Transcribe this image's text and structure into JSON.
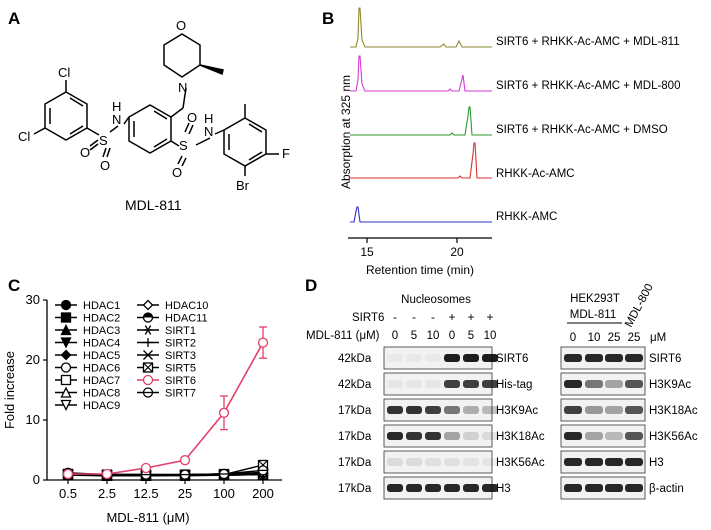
{
  "panels": {
    "A": {
      "letter": "A",
      "compound_name": "MDL-811",
      "atoms": {
        "cl1": "Cl",
        "cl2": "Cl",
        "o_morph": "O",
        "n_morph": "N",
        "s1": "S",
        "s2": "S",
        "o1": "O",
        "o2": "O",
        "o3": "O",
        "o4": "O",
        "nh1": "N",
        "h1": "H",
        "nh2": "N",
        "h2": "H",
        "f": "F",
        "br": "Br"
      }
    },
    "B": {
      "letter": "B",
      "ylabel": "Absorption at 325 nm",
      "xlabel": "Retention time (min)",
      "ticks": [
        "15",
        "20"
      ],
      "traces": [
        {
          "label": "SIRT6 + RHKK-Ac-AMC + MDL-811",
          "color": "#8b8a2e"
        },
        {
          "label": "SIRT6 + RHKK-Ac-AMC + MDL-800",
          "color": "#d63ad6"
        },
        {
          "label": "SIRT6 + RHKK-Ac-AMC + DMSO",
          "color": "#2a9a2a"
        },
        {
          "label": "RHKK-Ac-AMC",
          "color": "#d83030"
        },
        {
          "label": "RHKK-AMC",
          "color": "#3030c8"
        }
      ]
    },
    "C": {
      "letter": "C"
    },
    "D": {
      "letter": "D",
      "left": {
        "title": "Nucleosomes",
        "row1_label": "SIRT6",
        "row1_signs": [
          "-",
          "-",
          "-",
          "+",
          "+",
          "+"
        ],
        "row2_label": "MDL-811 (μM)",
        "row2_values": [
          "0",
          "5",
          "10",
          "0",
          "5",
          "10"
        ],
        "blots": [
          {
            "mw": "42kDa",
            "name": "SIRT6",
            "intensity": [
              0.03,
              0.03,
              0.03,
              0.95,
              0.95,
              0.95
            ]
          },
          {
            "mw": "42kDa",
            "name": "His-tag",
            "intensity": [
              0.05,
              0.05,
              0.05,
              0.8,
              0.8,
              0.8
            ]
          },
          {
            "mw": "17kDa",
            "name": "H3K9Ac",
            "intensity": [
              0.85,
              0.85,
              0.8,
              0.55,
              0.3,
              0.25
            ]
          },
          {
            "mw": "17kDa",
            "name": "H3K18Ac",
            "intensity": [
              0.9,
              0.85,
              0.85,
              0.35,
              0.15,
              0.1
            ]
          },
          {
            "mw": "17kDa",
            "name": "H3K56Ac",
            "intensity": [
              0.1,
              0.1,
              0.08,
              0.08,
              0.06,
              0.06
            ]
          },
          {
            "mw": "17kDa",
            "name": "H3",
            "intensity": [
              0.9,
              0.9,
              0.9,
              0.9,
              0.9,
              0.9
            ]
          }
        ]
      },
      "right": {
        "cell_line": "HEK293T",
        "group1": "MDL-811",
        "group2": "MDL-800",
        "lanes": [
          "0",
          "10",
          "25",
          "25"
        ],
        "unit": "μM",
        "blots": [
          {
            "name": "SIRT6",
            "intensity": [
              0.9,
              0.9,
              0.9,
              0.9
            ]
          },
          {
            "name": "H3K9Ac",
            "intensity": [
              0.9,
              0.55,
              0.35,
              0.7
            ]
          },
          {
            "name": "H3K18Ac",
            "intensity": [
              0.8,
              0.4,
              0.35,
              0.7
            ]
          },
          {
            "name": "H3K56Ac",
            "intensity": [
              0.9,
              0.35,
              0.25,
              0.7
            ]
          },
          {
            "name": "H3",
            "intensity": [
              0.9,
              0.9,
              0.9,
              0.9
            ]
          },
          {
            "name": "β-actin",
            "intensity": [
              0.9,
              0.9,
              0.9,
              0.9
            ]
          }
        ]
      }
    }
  },
  "chart_data": {
    "type": "line",
    "title": "",
    "xlabel": "MDL-811 (μM)",
    "ylabel": "Fold increase",
    "categories": [
      "0.5",
      "2.5",
      "12.5",
      "25",
      "100",
      "200"
    ],
    "ylim": [
      0,
      30
    ],
    "yticks": [
      "0",
      "10",
      "20",
      "30"
    ],
    "legend_position": "top-left",
    "grid": false,
    "series": [
      {
        "name": "HDAC1",
        "marker": "circle-filled",
        "color": "#000000",
        "values": [
          1.2,
          0.9,
          0.9,
          0.8,
          0.9,
          1.0
        ],
        "errors": [
          0.2,
          0.2,
          0.2,
          0.2,
          0.2,
          0.2
        ]
      },
      {
        "name": "HDAC2",
        "marker": "square-filled",
        "color": "#000000",
        "values": [
          1.0,
          0.8,
          0.8,
          0.9,
          1.0,
          1.1
        ],
        "errors": [
          0.2,
          0.2,
          0.2,
          0.2,
          0.2,
          0.2
        ]
      },
      {
        "name": "HDAC3",
        "marker": "triangle-filled",
        "color": "#000000",
        "values": [
          0.9,
          0.7,
          0.8,
          0.8,
          0.9,
          0.9
        ],
        "errors": [
          0.2,
          0.2,
          0.2,
          0.2,
          0.2,
          0.2
        ]
      },
      {
        "name": "HDAC4",
        "marker": "triangle-down-filled",
        "color": "#000000",
        "values": [
          0.8,
          0.7,
          0.7,
          0.8,
          0.8,
          0.9
        ],
        "errors": [
          0.2,
          0.2,
          0.2,
          0.2,
          0.2,
          0.2
        ]
      },
      {
        "name": "HDAC5",
        "marker": "diamond-filled",
        "color": "#000000",
        "values": [
          1.1,
          0.9,
          0.8,
          0.9,
          0.9,
          1.0
        ],
        "errors": [
          0.2,
          0.2,
          0.2,
          0.2,
          0.2,
          0.2
        ]
      },
      {
        "name": "HDAC6",
        "marker": "circle-open",
        "color": "#000000",
        "values": [
          1.0,
          0.9,
          0.9,
          0.9,
          1.0,
          1.2
        ],
        "errors": [
          0.2,
          0.2,
          0.2,
          0.2,
          0.2,
          0.2
        ]
      },
      {
        "name": "HDAC7",
        "marker": "square-open",
        "color": "#000000",
        "values": [
          0.9,
          0.8,
          0.8,
          0.7,
          0.8,
          1.0
        ],
        "errors": [
          0.2,
          0.2,
          0.2,
          0.2,
          0.2,
          0.2
        ]
      },
      {
        "name": "HDAC8",
        "marker": "triangle-open",
        "color": "#000000",
        "values": [
          0.8,
          0.8,
          0.7,
          0.8,
          0.9,
          0.9
        ],
        "errors": [
          0.2,
          0.2,
          0.2,
          0.2,
          0.2,
          0.2
        ]
      },
      {
        "name": "HDAC9",
        "marker": "triangle-down-open",
        "color": "#000000",
        "values": [
          0.9,
          0.8,
          0.8,
          0.8,
          0.8,
          0.9
        ],
        "errors": [
          0.2,
          0.2,
          0.2,
          0.2,
          0.2,
          0.2
        ]
      },
      {
        "name": "HDAC10",
        "marker": "diamond-open",
        "color": "#000000",
        "values": [
          1.0,
          0.9,
          0.9,
          0.8,
          0.9,
          1.1
        ],
        "errors": [
          0.2,
          0.2,
          0.2,
          0.2,
          0.2,
          0.2
        ]
      },
      {
        "name": "HDAC11",
        "marker": "circle-half",
        "color": "#000000",
        "values": [
          1.1,
          0.8,
          0.9,
          0.9,
          1.0,
          1.2
        ],
        "errors": [
          0.2,
          0.2,
          0.2,
          0.2,
          0.2,
          0.2
        ]
      },
      {
        "name": "SIRT1",
        "marker": "star",
        "color": "#000000",
        "values": [
          0.9,
          0.8,
          0.7,
          0.8,
          0.8,
          0.9
        ],
        "errors": [
          0.2,
          0.2,
          0.2,
          0.2,
          0.2,
          0.2
        ]
      },
      {
        "name": "SIRT2",
        "marker": "plus",
        "color": "#000000",
        "values": [
          1.0,
          0.9,
          0.8,
          0.9,
          1.0,
          1.0
        ],
        "errors": [
          0.2,
          0.2,
          0.2,
          0.2,
          0.2,
          0.2
        ]
      },
      {
        "name": "SIRT3",
        "marker": "cross",
        "color": "#000000",
        "values": [
          0.8,
          0.8,
          0.8,
          0.9,
          0.9,
          1.3
        ],
        "errors": [
          0.2,
          0.2,
          0.2,
          0.2,
          0.2,
          0.2
        ]
      },
      {
        "name": "SIRT5",
        "marker": "square-cross",
        "color": "#000000",
        "values": [
          1.0,
          0.9,
          0.9,
          0.8,
          0.9,
          2.5
        ],
        "errors": [
          0.2,
          0.2,
          0.2,
          0.2,
          0.2,
          0.4
        ]
      },
      {
        "name": "SIRT6",
        "marker": "circle-open",
        "color": "#e0406a",
        "values": [
          1.0,
          1.0,
          2.0,
          3.3,
          11.2,
          22.9
        ],
        "errors": [
          0.2,
          0.2,
          0.3,
          0.4,
          2.8,
          2.6
        ]
      },
      {
        "name": "SIRT7",
        "marker": "circle-bar",
        "color": "#000000",
        "values": [
          1.1,
          0.9,
          0.9,
          0.9,
          1.0,
          1.6
        ],
        "errors": [
          0.2,
          0.2,
          0.2,
          0.2,
          0.2,
          0.3
        ]
      }
    ]
  }
}
